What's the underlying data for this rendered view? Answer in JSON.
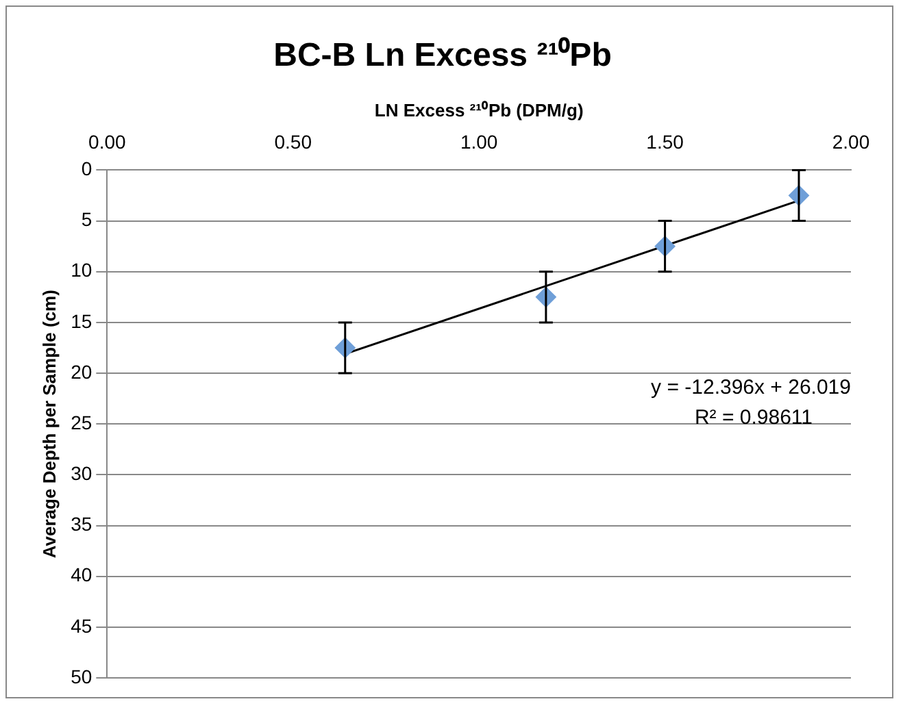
{
  "chart_data": {
    "type": "scatter",
    "title": "BC-B Ln Excess ²¹⁰Pb",
    "xlabel": "LN Excess ²¹⁰Pb (DPM/g)",
    "ylabel": "Average Depth per Sample (cm)",
    "xlim": [
      0,
      2
    ],
    "xticks": [
      {
        "value": 0,
        "label": "0.00"
      },
      {
        "value": 0.5,
        "label": "0.50"
      },
      {
        "value": 1,
        "label": "1.00"
      },
      {
        "value": 1.5,
        "label": "1.50"
      },
      {
        "value": 2,
        "label": "2.00"
      }
    ],
    "ylim": [
      50,
      0
    ],
    "yticks": [
      0,
      5,
      10,
      15,
      20,
      25,
      30,
      35,
      40,
      45,
      50
    ],
    "grid": "y",
    "legend": false,
    "marker": "diamond",
    "series": [
      {
        "color": "#6f9fd8",
        "x": [
          0.64,
          1.18,
          1.5,
          1.86
        ],
        "values": [
          17.5,
          12.5,
          7.5,
          2.5
        ],
        "errors": [
          2.5,
          2.5,
          2.5,
          2.5
        ]
      },
      {
        "type": "line",
        "color": "#000000",
        "x": [
          0.64,
          1.86
        ],
        "values": [
          18.1,
          3.0
        ],
        "marker": "none"
      }
    ],
    "annotations": [
      "y = -12.396x + 26.019",
      "R² = 0.98611"
    ]
  }
}
